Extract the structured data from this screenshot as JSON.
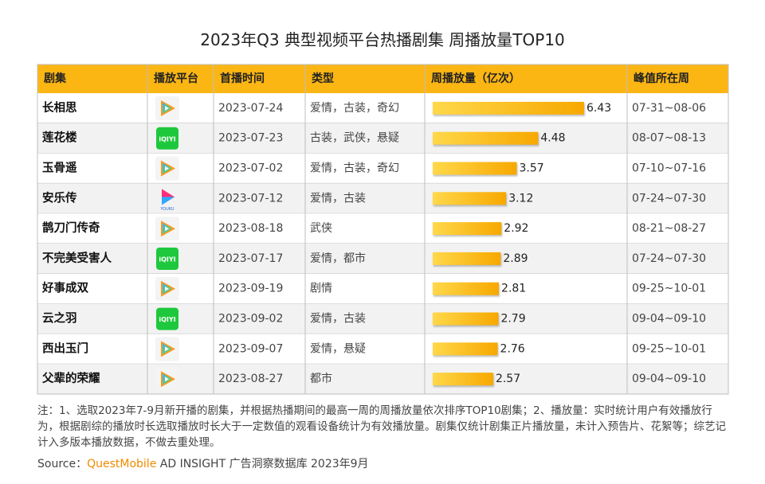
{
  "title": "2023年Q3 典型视频平台热播剧集 周播放量TOP10",
  "table": {
    "columns": [
      "剧集",
      "播放平台",
      "首播时间",
      "类型",
      "周播放量（亿次）",
      "峰值所在周"
    ],
    "rows": [
      {
        "drama": "长相思",
        "platform": null,
        "date": "2023-07-24",
        "genre": "爱情，古装，奇幻",
        "views": 6.43,
        "peak": "07-31~08-06"
      },
      {
        "drama": "莲花楼",
        "platform": "iQIYI",
        "date": "2023-07-23",
        "genre": "古装，武侠，悬疑",
        "views": 4.48,
        "peak": "08-07~08-13"
      },
      {
        "drama": "玉骨遥",
        "platform": null,
        "date": "2023-07-02",
        "genre": "爱情，古装，奇幻",
        "views": 3.57,
        "peak": "07-10~07-16"
      },
      {
        "drama": "安乐传",
        "platform": "YOUKU",
        "date": "2023-07-12",
        "genre": "爱情，古装",
        "views": 3.12,
        "peak": "07-24~07-30"
      },
      {
        "drama": "鹊刀门传奇",
        "platform": null,
        "date": "2023-08-18",
        "genre": "武侠",
        "views": 2.92,
        "peak": "08-21~08-27"
      },
      {
        "drama": "不完美受害人",
        "platform": "iQIYI",
        "date": "2023-07-17",
        "genre": "爱情，都市",
        "views": 2.89,
        "peak": "07-24~07-30"
      },
      {
        "drama": "好事成双",
        "platform": null,
        "date": "2023-09-19",
        "genre": "剧情",
        "views": 2.81,
        "peak": "09-25~10-01"
      },
      {
        "drama": "云之羽",
        "platform": "iQIYI",
        "date": "2023-09-02",
        "genre": "爱情，古装",
        "views": 2.79,
        "peak": "09-04~09-10"
      },
      {
        "drama": "西出玉门",
        "platform": null,
        "date": "2023-09-07",
        "genre": "爱情，悬疑",
        "views": 2.76,
        "peak": "09-25~10-01"
      },
      {
        "drama": "父辈的荣耀",
        "platform": null,
        "date": "2023-08-27",
        "genre": "都市",
        "views": 2.57,
        "peak": "09-04~09-10"
      }
    ]
  },
  "note": "注：1、选取2023年7-9月新开播的剧集，并根据热播期间的最高一周的周播放量依次排序TOP10剧集；2、播放量：实时统计用户有效播放行为，根据剧综的播放时长选取播放时长大于一定数值的观看设备统计为有效播放量。剧集仅统计剧集正片播放量，未计入预告片、花絮等；综艺记计入多版本播放数据，不做去重处理。",
  "source": {
    "label": "Source：",
    "brand": "QuestMobile",
    "rest": " AD INSIGHT 广告洞察数据库 2023年9月"
  }
}
